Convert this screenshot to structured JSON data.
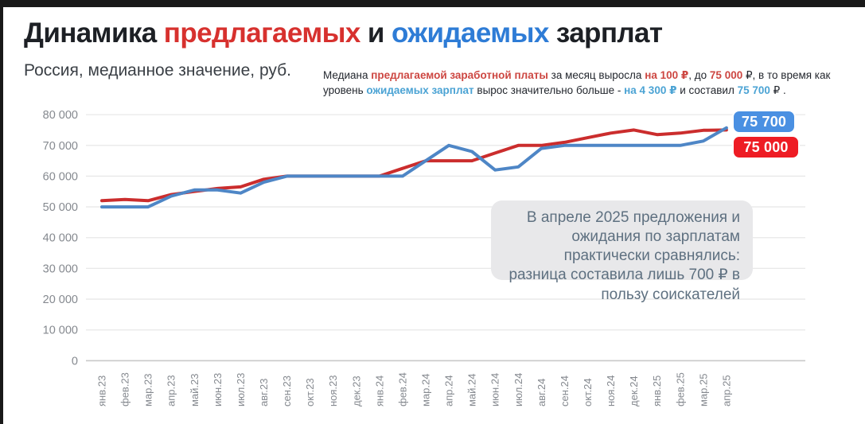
{
  "page": {
    "title_runs": [
      {
        "text": "Динамика "
      },
      {
        "text": "предлагаемых",
        "em": "offered"
      },
      {
        "text": " и "
      },
      {
        "text": "ожидаемых",
        "em": "expected"
      },
      {
        "text": " зарплат"
      }
    ],
    "subtitle": "Россия, медианное значение, руб.",
    "annotation_runs": [
      {
        "text": "Медиана "
      },
      {
        "text": "предлагаемой заработной платы",
        "em": "offered"
      },
      {
        "text": " за месяц выросла "
      },
      {
        "text": "на 100 ₽",
        "em": "offered"
      },
      {
        "text": ", до "
      },
      {
        "text": "75 000",
        "em": "offered"
      },
      {
        "text": " ₽, в то время как уровень "
      },
      {
        "text": "ожидаемых зарплат",
        "em": "expected"
      },
      {
        "text": " вырос значительно больше - "
      },
      {
        "text": "на 4 300 ₽",
        "em": "expected"
      },
      {
        "text": " и составил "
      },
      {
        "text": "75 700",
        "em": "expected"
      },
      {
        "text": " ₽ ."
      }
    ],
    "callout_text": "В апреле 2025 предложения и ожидания по зарплатам практически сравнялись: разница составила лишь 700 ₽ в пользу соискателей",
    "badges": {
      "expected_value": "75 700",
      "offered_value": "75 000"
    }
  },
  "colors": {
    "title_offered_red": "#d7312e",
    "title_expected_blue": "#2e7cd6",
    "line_offered_red": "#cb2d2d",
    "line_expected_blue": "#4e86c6",
    "badge_offered_bg": "#ee1c24",
    "badge_expected_bg": "#4a90e2",
    "gridline": "#e8e8e8",
    "zero_line": "#c9c9c9",
    "axis_label": "#85898f"
  },
  "chart_data": {
    "type": "line",
    "title": "Динамика предлагаемых и ожидаемых зарплат",
    "subtitle": "Россия, медианное значение, руб.",
    "xlabel": "",
    "ylabel": "руб.",
    "ylim": [
      0,
      80000
    ],
    "grid": "horizontal",
    "legend_position": "none (colored end-of-line value badges instead)",
    "yticks": {
      "values": [
        0,
        10000,
        20000,
        30000,
        40000,
        50000,
        60000,
        70000,
        80000
      ],
      "labels": [
        "0",
        "10 000",
        "20 000",
        "30 000",
        "40 000",
        "50 000",
        "60 000",
        "70 000",
        "80 000"
      ]
    },
    "categories": [
      "янв.23",
      "фев.23",
      "мар.23",
      "апр.23",
      "май.23",
      "июн.23",
      "июл.23",
      "авг.23",
      "сен.23",
      "окт.23",
      "ноя.23",
      "дек.23",
      "янв.24",
      "фев.24",
      "мар.24",
      "апр.24",
      "май.24",
      "июн.24",
      "июл.24",
      "авг.24",
      "сен.24",
      "окт.24",
      "ноя.24",
      "дек.24",
      "янв.25",
      "фев.25",
      "мар.25",
      "апр.25"
    ],
    "series": [
      {
        "name": "предлагаемая зарплата",
        "color": "#cb2d2d",
        "end_label": "75 000",
        "values": [
          52000,
          52400,
          52000,
          54000,
          55000,
          56000,
          56500,
          59000,
          60000,
          60000,
          60000,
          60000,
          60000,
          62500,
          65000,
          65000,
          65000,
          67500,
          70000,
          70000,
          71000,
          72500,
          74000,
          75000,
          73500,
          74000,
          74900,
          75000
        ]
      },
      {
        "name": "ожидаемая зарплата",
        "color": "#4e86c6",
        "end_label": "75 700",
        "values": [
          50000,
          50000,
          50000,
          53500,
          55500,
          55500,
          54500,
          58000,
          60000,
          60000,
          60000,
          60000,
          60000,
          60000,
          65000,
          70000,
          68000,
          62000,
          63000,
          69000,
          70000,
          70000,
          70000,
          70000,
          70000,
          70000,
          71400,
          75700
        ]
      }
    ]
  }
}
